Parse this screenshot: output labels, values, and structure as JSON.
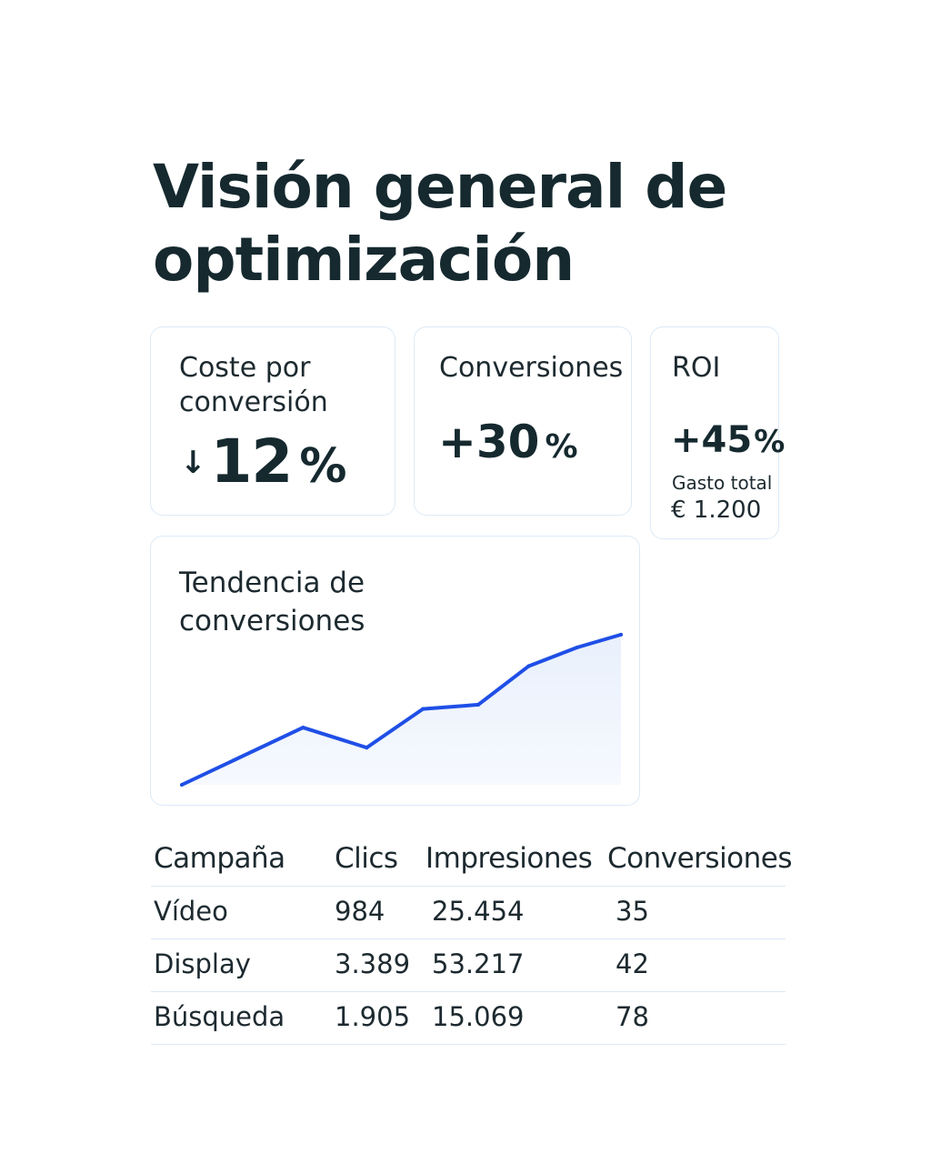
{
  "page": {
    "title": "Visión general de optimización"
  },
  "kpis": {
    "cost_per_conversion": {
      "label": "Coste por conversión",
      "direction_icon": "arrow-down-icon",
      "arrow_glyph": "↓",
      "value": "12",
      "unit": "%"
    },
    "conversions": {
      "label": "Conversiones",
      "value": "+30",
      "unit": "%"
    },
    "roi": {
      "label": "ROI",
      "value": "+45",
      "unit": "%",
      "spend_label": "Gasto total",
      "spend_value": "€ 1.200"
    }
  },
  "trend": {
    "title": "Tendencia de conversiones",
    "line_color": "#1f4fe6",
    "fill_color": "#e9f0fc"
  },
  "chart_data": {
    "type": "area",
    "title": "Tendencia de conversiones",
    "x": [
      0,
      1,
      2,
      3,
      4,
      5,
      6,
      7
    ],
    "values": [
      0,
      40,
      26,
      53,
      56,
      83,
      96,
      105
    ],
    "x_positions": [
      0,
      0.276,
      0.421,
      0.549,
      0.675,
      0.79,
      0.9,
      1
    ],
    "ylim": [
      0,
      110
    ],
    "grid": false,
    "axes_visible": false
  },
  "table": {
    "headers": [
      "Campaña",
      "Clics",
      "Impresiones",
      "Conversiones"
    ],
    "rows": [
      [
        "Vídeo",
        "984",
        "25.454",
        "35"
      ],
      [
        "Display",
        "3.389",
        "53.217",
        "42"
      ],
      [
        "Búsqueda",
        "1.905",
        "15.069",
        "78"
      ]
    ]
  },
  "colors": {
    "text": "#15292f",
    "card_border": "#dceaf6",
    "accent": "#1f4fe6"
  }
}
